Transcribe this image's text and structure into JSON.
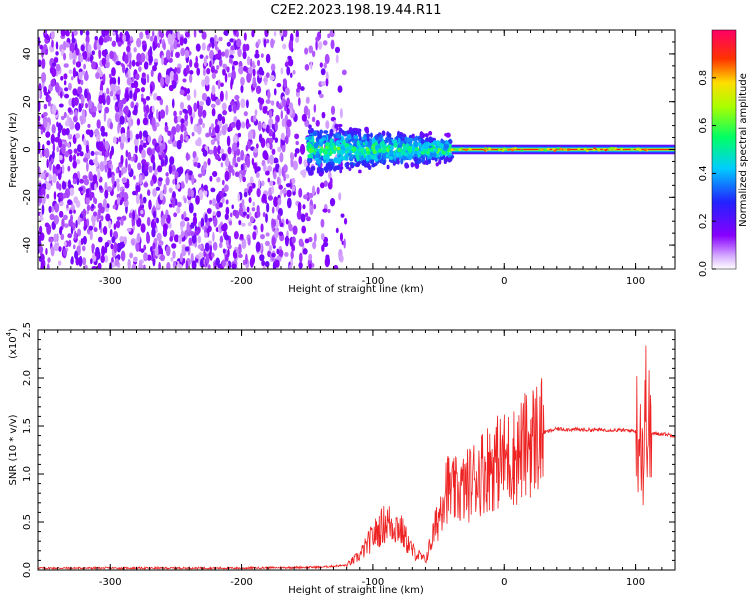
{
  "chart_data": [
    {
      "type": "heatmap",
      "title": "C2E2.2023.198.19.44.R11",
      "xlabel": "Height of straight line (km)",
      "ylabel": "Frequency (Hz)",
      "xlim": [
        -355,
        130
      ],
      "ylim": [
        -50,
        50
      ],
      "xticks": [
        -300,
        -200,
        -100,
        0,
        100
      ],
      "yticks": [
        -40,
        -20,
        0,
        20,
        40
      ],
      "colorbar": {
        "label": "Normalized spectral amplitude",
        "range": [
          0.0,
          1.0
        ],
        "ticks": [
          "0.0",
          "0.2",
          "0.4",
          "0.6",
          "0.8"
        ],
        "colormap": "rainbow (white → purple → blue → cyan → green → yellow → red → magenta)"
      },
      "regions": [
        {
          "x_range": [
            -355,
            -140
          ],
          "freq_range": [
            -50,
            50
          ],
          "amplitude": "low (broadband noise, purple)"
        },
        {
          "x_range": [
            -150,
            -40
          ],
          "freq_range": [
            -12,
            12
          ],
          "amplitude": "medium (blue/cyan/green)"
        },
        {
          "x_range": [
            -40,
            110
          ],
          "freq_center": 0,
          "amplitude": "high (red/yellow narrow line)"
        }
      ],
      "grid": false
    },
    {
      "type": "line",
      "xlabel": "Height of straight line (km)",
      "ylabel": "SNR (10 * v/v)",
      "yscale_label": "(x10",
      "yscale_exp": "4",
      "xlim": [
        -355,
        130
      ],
      "ylim": [
        0,
        2.5
      ],
      "xticks": [
        -300,
        -200,
        -100,
        0,
        100
      ],
      "yticks": [
        "0.0",
        "0.5",
        "1.0",
        "1.5",
        "2.0",
        "2.5"
      ],
      "line_color": "#ee2222",
      "grid": false,
      "series": [
        {
          "x": [
            -355,
            -300,
            -200,
            -140,
            -120,
            -110,
            -100,
            -90,
            -80,
            -70,
            -60,
            -50,
            -45,
            -40,
            -30,
            -20,
            -10,
            0,
            10,
            20,
            30,
            40,
            60,
            80,
            100,
            104,
            106,
            108,
            110,
            120,
            130
          ],
          "y": [
            0.02,
            0.02,
            0.02,
            0.03,
            0.05,
            0.15,
            0.35,
            0.5,
            0.45,
            0.2,
            0.1,
            0.55,
            0.9,
            0.8,
            0.85,
            1.0,
            1.1,
            1.15,
            1.2,
            1.35,
            1.43,
            1.47,
            1.46,
            1.46,
            1.45,
            1.5,
            1.1,
            1.8,
            1.42,
            1.42,
            1.4
          ]
        }
      ]
    }
  ]
}
